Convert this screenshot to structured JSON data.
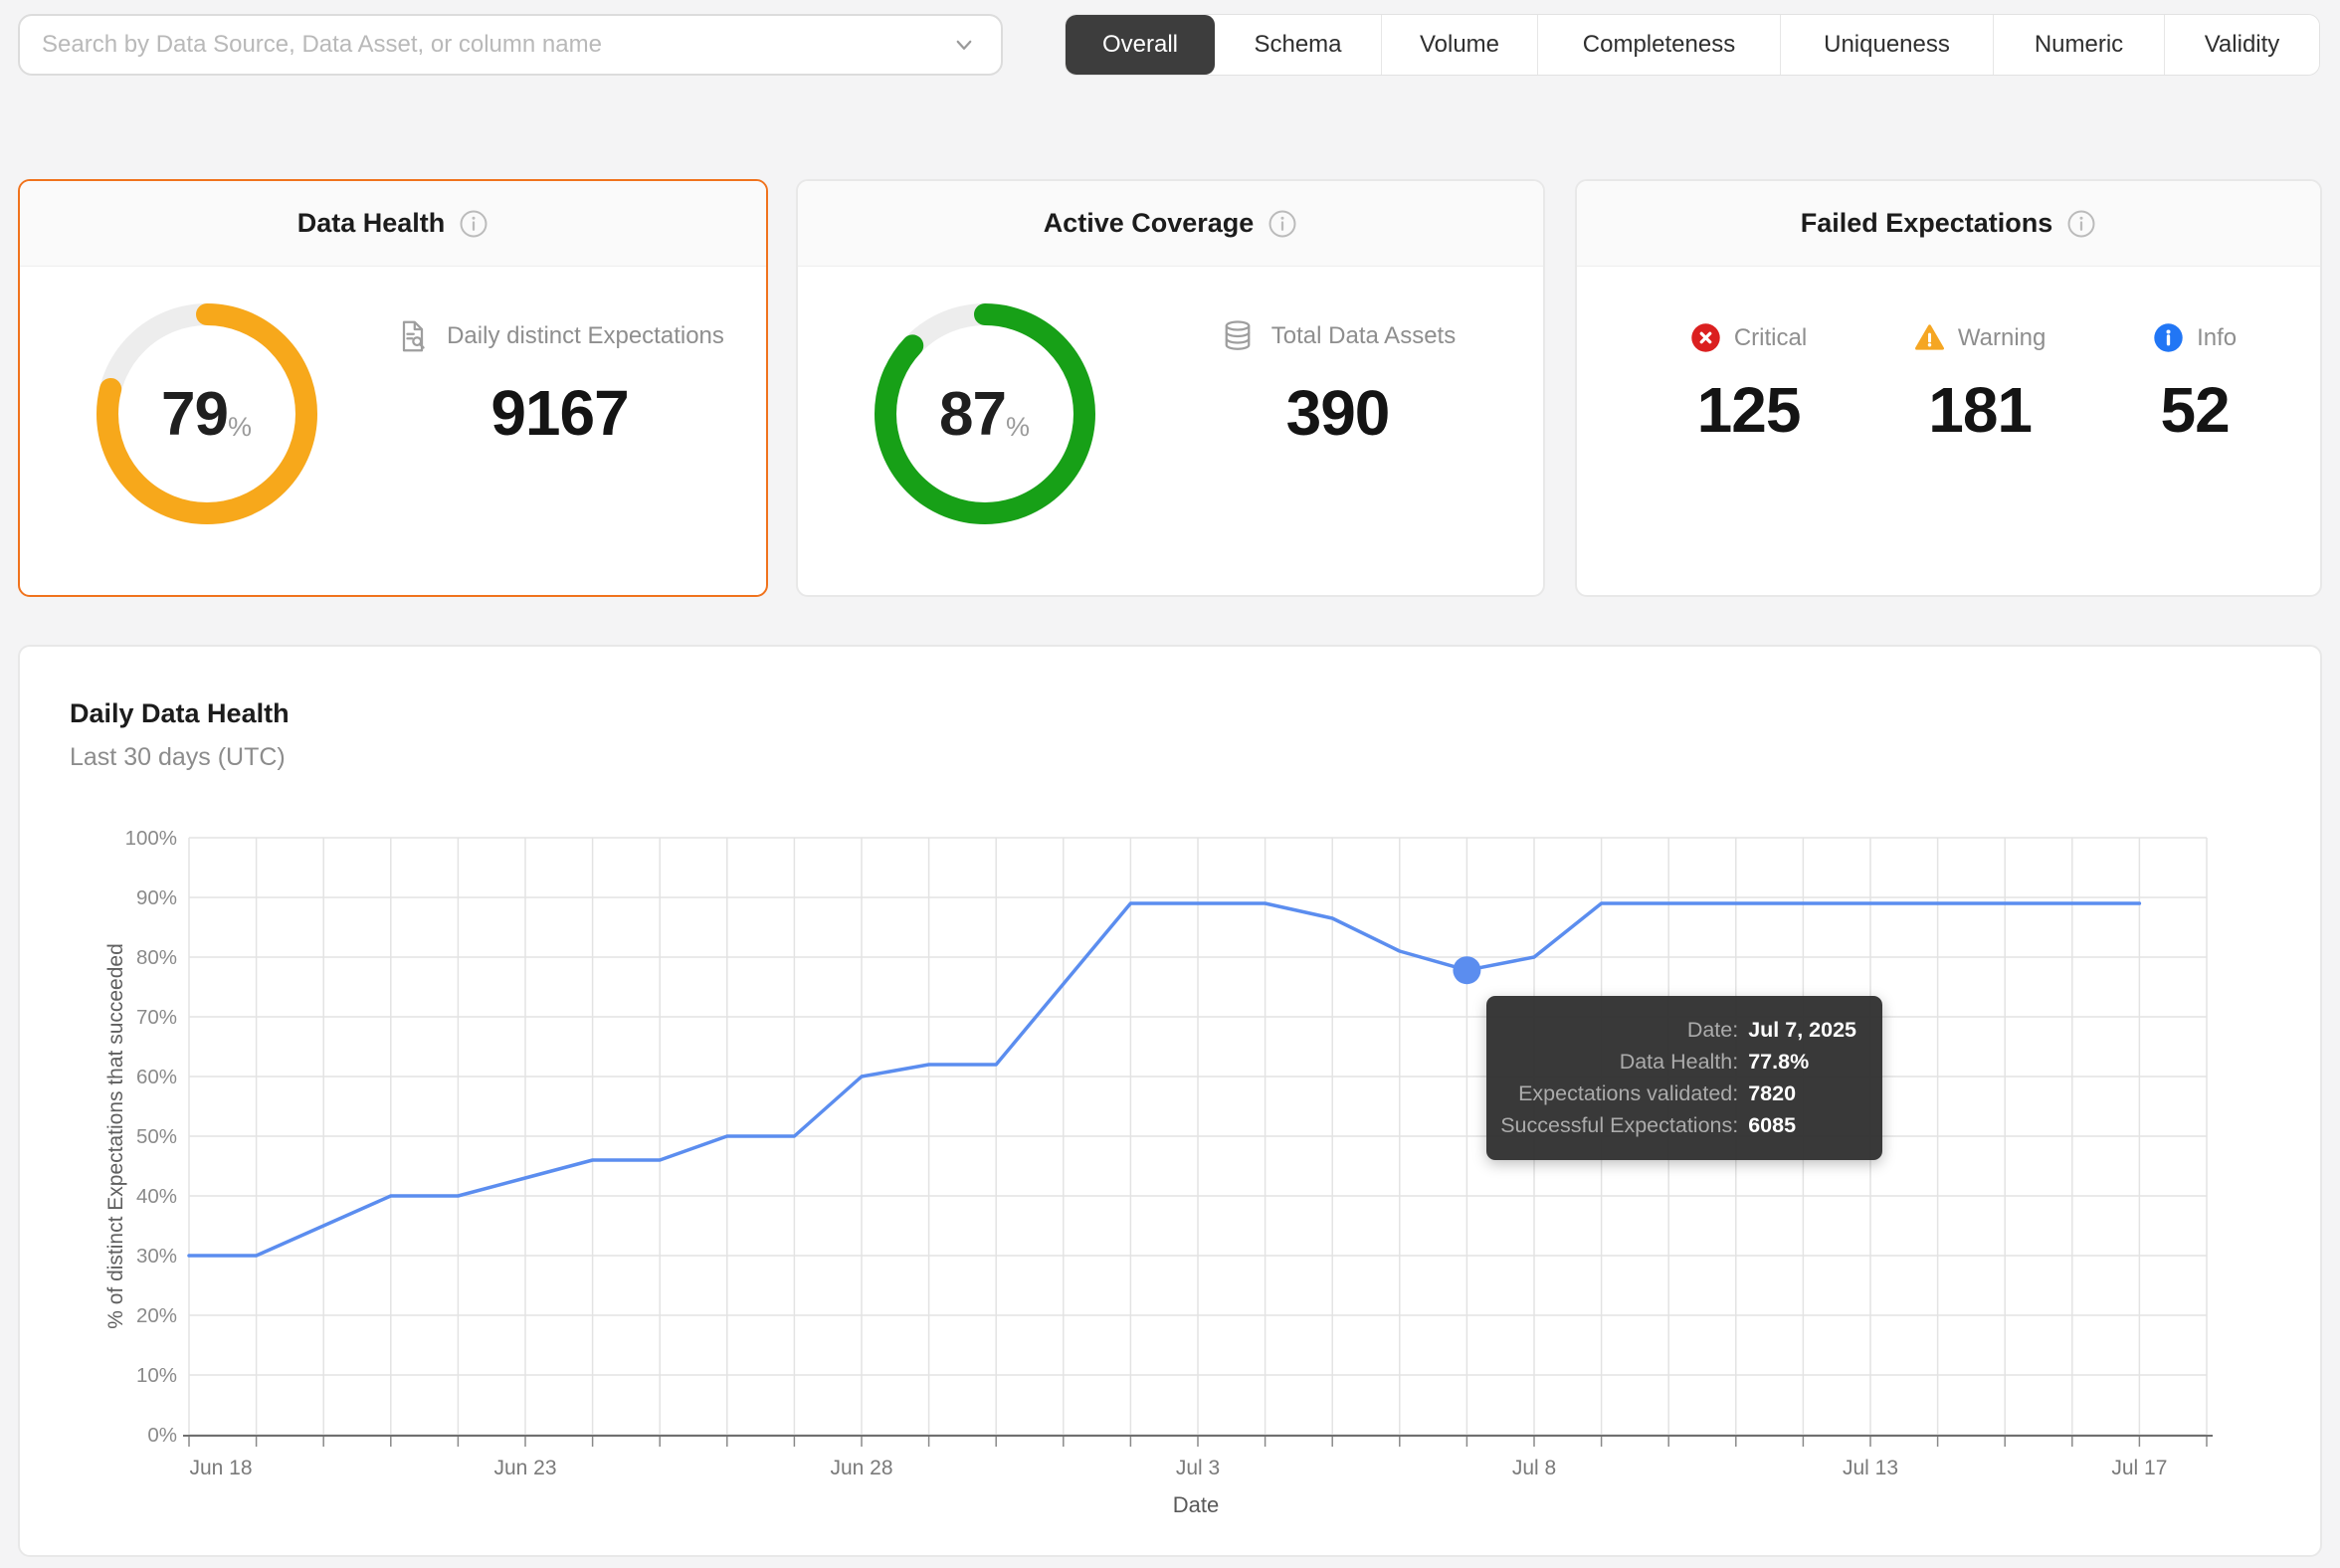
{
  "search": {
    "placeholder": "Search by Data Source, Data Asset, or column name"
  },
  "tabs": {
    "items": [
      "Overall",
      "Schema",
      "Volume",
      "Completeness",
      "Uniqueness",
      "Numeric",
      "Validity"
    ],
    "active": "Overall"
  },
  "cards": {
    "data_health": {
      "title": "Data Health",
      "ring_percent": 79,
      "ring_suffix": "%",
      "ring_color": "#F7A81B",
      "metric_label": "Daily distinct Expectations",
      "metric_value": "9167"
    },
    "active_coverage": {
      "title": "Active Coverage",
      "ring_percent": 87,
      "ring_suffix": "%",
      "ring_color": "#17A017",
      "metric_label": "Total Data Assets",
      "metric_value": "390"
    },
    "failed_expectations": {
      "title": "Failed Expectations",
      "severities": [
        {
          "label": "Critical",
          "value": "125",
          "color": "#DB2020"
        },
        {
          "label": "Warning",
          "value": "181",
          "color": "#F5A623"
        },
        {
          "label": "Info",
          "value": "52",
          "color": "#2176F5"
        }
      ]
    }
  },
  "chart_card": {
    "title": "Daily Data Health",
    "subtitle": "Last 30 days (UTC)"
  },
  "chart_data": {
    "type": "line",
    "title": "Daily Data Health",
    "subtitle": "Last 30 days (UTC)",
    "xlabel": "Date",
    "ylabel": "% of distinct Expectations that succeeded",
    "ylim": [
      0,
      100
    ],
    "y_tick_step": 10,
    "y_tick_suffix": "%",
    "grid": true,
    "line_color": "#5B8DEF",
    "x": [
      "Jun 18",
      "Jun 19",
      "Jun 20",
      "Jun 21",
      "Jun 22",
      "Jun 23",
      "Jun 24",
      "Jun 25",
      "Jun 26",
      "Jun 27",
      "Jun 28",
      "Jun 29",
      "Jun 30",
      "Jul 1",
      "Jul 2",
      "Jul 3",
      "Jul 4",
      "Jul 5",
      "Jul 6",
      "Jul 7",
      "Jul 8",
      "Jul 9",
      "Jul 10",
      "Jul 11",
      "Jul 12",
      "Jul 13",
      "Jul 14",
      "Jul 15",
      "Jul 16",
      "Jul 17"
    ],
    "values": [
      30,
      30,
      35,
      40,
      40,
      43,
      46,
      46,
      50,
      50,
      60,
      62,
      62,
      75.5,
      89,
      89,
      89,
      86.5,
      81,
      77.8,
      80,
      89,
      89,
      89,
      89,
      89,
      89,
      89,
      89,
      89
    ],
    "x_tick_labels": [
      "Jun 18",
      "Jun 23",
      "Jun 28",
      "Jul 3",
      "Jul 8",
      "Jul 13",
      "Jul 17"
    ],
    "x_tick_indices": [
      0,
      5,
      10,
      15,
      20,
      25,
      29
    ],
    "highlight": {
      "index": 19,
      "date": "Jul 7, 2025",
      "value": 77.8
    }
  },
  "tooltip": {
    "rows": [
      {
        "label": "Date:",
        "value": "Jul 7, 2025"
      },
      {
        "label": "Data Health:",
        "value": "77.8%"
      },
      {
        "label": "Expectations validated:",
        "value": "7820"
      },
      {
        "label": "Successful Expectations:",
        "value": "6085"
      }
    ]
  }
}
